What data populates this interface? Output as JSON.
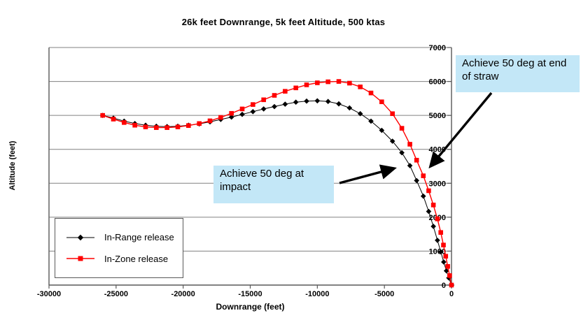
{
  "chart_data": {
    "type": "line",
    "title": "26k feet Downrange, 5k feet Altitude, 500 ktas",
    "xlabel": "Downrange (feet)",
    "ylabel": "Altitude (feet)",
    "xlim": [
      -30000,
      0
    ],
    "ylim": [
      0,
      7000
    ],
    "x_ticks": [
      -30000,
      -25000,
      -20000,
      -15000,
      -10000,
      -5000,
      0
    ],
    "y_ticks": [
      0,
      1000,
      2000,
      3000,
      4000,
      5000,
      6000,
      7000
    ],
    "grid": "horizontal",
    "legend_position": "inside-bottom-left",
    "series": [
      {
        "name": "In-Range release",
        "color": "#000000",
        "marker": "diamond",
        "points": [
          [
            -26000,
            5000
          ],
          [
            -25200,
            4920
          ],
          [
            -24400,
            4830
          ],
          [
            -23600,
            4760
          ],
          [
            -22800,
            4710
          ],
          [
            -22000,
            4680
          ],
          [
            -21200,
            4670
          ],
          [
            -20400,
            4680
          ],
          [
            -19600,
            4710
          ],
          [
            -18800,
            4750
          ],
          [
            -18000,
            4810
          ],
          [
            -17200,
            4880
          ],
          [
            -16400,
            4950
          ],
          [
            -15600,
            5030
          ],
          [
            -14800,
            5110
          ],
          [
            -14000,
            5190
          ],
          [
            -13200,
            5260
          ],
          [
            -12400,
            5330
          ],
          [
            -11600,
            5390
          ],
          [
            -10800,
            5420
          ],
          [
            -10000,
            5430
          ],
          [
            -9200,
            5410
          ],
          [
            -8400,
            5340
          ],
          [
            -7600,
            5220
          ],
          [
            -6800,
            5050
          ],
          [
            -6000,
            4830
          ],
          [
            -5200,
            4560
          ],
          [
            -4400,
            4240
          ],
          [
            -3700,
            3900
          ],
          [
            -3100,
            3520
          ],
          [
            -2600,
            3080
          ],
          [
            -2100,
            2620
          ],
          [
            -1700,
            2170
          ],
          [
            -1350,
            1730
          ],
          [
            -1050,
            1320
          ],
          [
            -800,
            980
          ],
          [
            -580,
            680
          ],
          [
            -380,
            420
          ],
          [
            -200,
            210
          ],
          [
            0,
            0
          ]
        ]
      },
      {
        "name": "In-Zone release",
        "color": "#ff0000",
        "marker": "square",
        "points": [
          [
            -26000,
            5000
          ],
          [
            -25200,
            4890
          ],
          [
            -24400,
            4790
          ],
          [
            -23600,
            4710
          ],
          [
            -22800,
            4660
          ],
          [
            -22000,
            4640
          ],
          [
            -21200,
            4640
          ],
          [
            -20400,
            4660
          ],
          [
            -19600,
            4700
          ],
          [
            -18800,
            4760
          ],
          [
            -18000,
            4840
          ],
          [
            -17200,
            4940
          ],
          [
            -16400,
            5060
          ],
          [
            -15600,
            5190
          ],
          [
            -14800,
            5320
          ],
          [
            -14000,
            5460
          ],
          [
            -13200,
            5590
          ],
          [
            -12400,
            5710
          ],
          [
            -11600,
            5810
          ],
          [
            -10800,
            5900
          ],
          [
            -10000,
            5960
          ],
          [
            -9200,
            5990
          ],
          [
            -8400,
            6000
          ],
          [
            -7600,
            5950
          ],
          [
            -6800,
            5840
          ],
          [
            -6000,
            5660
          ],
          [
            -5200,
            5400
          ],
          [
            -4400,
            5050
          ],
          [
            -3700,
            4620
          ],
          [
            -3100,
            4150
          ],
          [
            -2600,
            3680
          ],
          [
            -2100,
            3220
          ],
          [
            -1700,
            2780
          ],
          [
            -1350,
            2360
          ],
          [
            -1050,
            1950
          ],
          [
            -800,
            1550
          ],
          [
            -600,
            1180
          ],
          [
            -430,
            850
          ],
          [
            -280,
            550
          ],
          [
            -140,
            280
          ],
          [
            0,
            0
          ]
        ]
      }
    ]
  },
  "legend": {
    "items": [
      {
        "label": "In-Range release"
      },
      {
        "label": "In-Zone release"
      }
    ]
  },
  "annotations": {
    "impact": {
      "text": "Achieve 50 deg at impact"
    },
    "straw": {
      "text": "Achieve 50 deg at end of straw"
    }
  },
  "colors": {
    "callout_bg": "#c3e7f7",
    "in_range": "#000000",
    "in_zone": "#ff0000",
    "gridline": "#808080",
    "axis": "#595959"
  }
}
